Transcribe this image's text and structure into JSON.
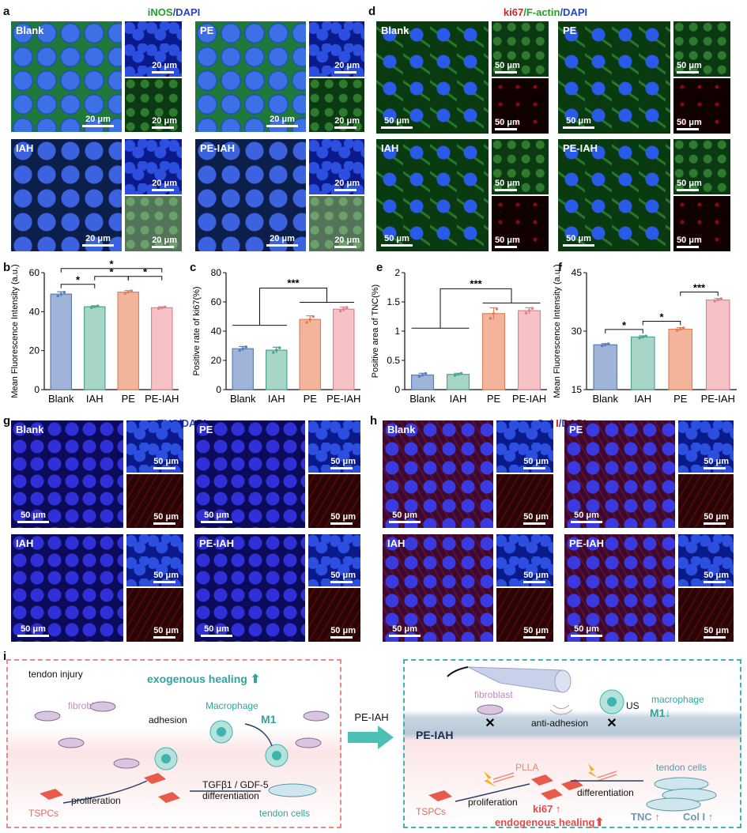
{
  "panel_a": {
    "label": "a",
    "title_part1": "iNOS",
    "title_part2": "/DAPI",
    "groups": [
      "Blank",
      "PE",
      "IAH",
      "PE-IAH"
    ],
    "scale_bar": "20 μm"
  },
  "panel_d": {
    "label": "d",
    "title_part1": "ki67",
    "title_part2": "/F-actin",
    "title_part3": "/DAPI",
    "groups": [
      "Blank",
      "PE",
      "IAH",
      "PE-IAH"
    ],
    "scale_bar": "50 μm"
  },
  "panel_g": {
    "label": "g",
    "title_part1": "TNC",
    "title_part2": "/DAPI",
    "groups": [
      "Blank",
      "PE",
      "IAH",
      "PE-IAH"
    ],
    "scale_bar": "50 μm"
  },
  "panel_h": {
    "label": "h",
    "title_part1": "Col I",
    "title_part2": "/DAPI",
    "groups": [
      "Blank",
      "PE",
      "IAH",
      "PE-IAH"
    ],
    "scale_bar": "50 μm"
  },
  "colors": {
    "blank": "#9fb4d8",
    "iah": "#a7d6c8",
    "pe": "#f2b59c",
    "peiah": "#f6c2c6",
    "blank_edge": "#5f7fb0",
    "iah_edge": "#4fa58c",
    "pe_edge": "#e0805a",
    "peiah_edge": "#e0828a",
    "teal": "#3fb3ad",
    "red": "#d83838"
  },
  "chart_data": [
    {
      "label": "b",
      "type": "bar",
      "categories": [
        "Blank",
        "IAH",
        "PE",
        "PE-IAH"
      ],
      "values": [
        49,
        42.5,
        50,
        42
      ],
      "errors": [
        1.2,
        0.5,
        0.8,
        0.5
      ],
      "ylabel": "Mean Fluorescence Intensity (a.u.)",
      "ylim": [
        0,
        60
      ],
      "yticks": [
        0,
        20,
        40,
        60
      ],
      "significance": [
        "*",
        "*",
        "*",
        "*"
      ]
    },
    {
      "label": "c",
      "type": "bar",
      "categories": [
        "Blank",
        "IAH",
        "PE",
        "PE-IAH"
      ],
      "values": [
        28,
        27,
        48,
        55
      ],
      "errors": [
        1.5,
        2,
        2.5,
        1.5
      ],
      "ylabel": "Positive rate of ki67(%)",
      "ylim": [
        0,
        80
      ],
      "yticks": [
        0,
        20,
        40,
        60,
        80
      ],
      "significance": [
        "***"
      ]
    },
    {
      "label": "e",
      "type": "bar",
      "categories": [
        "Blank",
        "IAH",
        "PE",
        "PE-IAH"
      ],
      "values": [
        0.25,
        0.26,
        1.3,
        1.35
      ],
      "errors": [
        0.03,
        0.02,
        0.1,
        0.05
      ],
      "ylabel": "Positive area of TNC(%)",
      "ylim": [
        0,
        2.0
      ],
      "yticks": [
        0.0,
        0.5,
        1.0,
        1.5,
        2.0
      ],
      "significance": [
        "***"
      ]
    },
    {
      "label": "f",
      "type": "bar",
      "categories": [
        "Blank",
        "IAH",
        "PE",
        "PE-IAH"
      ],
      "values": [
        26.5,
        28.5,
        30.5,
        38
      ],
      "errors": [
        0.3,
        0.3,
        0.4,
        0.4
      ],
      "ylabel": "Mean Fluorescence Intensity (a.u.)",
      "ylim": [
        15,
        45
      ],
      "yticks": [
        15,
        30,
        45
      ],
      "significance": [
        "*",
        "*",
        "***"
      ]
    }
  ],
  "panel_i": {
    "label": "i",
    "left": {
      "tendon_injury": "tendon injury",
      "exogenous": "exogenous healing",
      "fibroblast": "fibroblast",
      "macrophage": "Macrophage",
      "adhesion": "adhesion",
      "m1": "M1",
      "tgf": "TGFβ1 / GDF-5",
      "differentiation": "differentiation",
      "proliferation": "proliferation",
      "tspcs": "TSPCs",
      "tendon_cells": "tendon cells"
    },
    "arrow_label": "PE-IAH",
    "right": {
      "us": "US",
      "fibroblast": "fibroblast",
      "macrophage": "macrophage",
      "m1": "M1↓",
      "anti_adhesion": "anti-adhesion",
      "peiah": "PE-IAH",
      "plla": "PLLA",
      "tendon_cells": "tendon cells",
      "proliferation": "proliferation",
      "differentiation": "differentiation",
      "tspcs": "TSPCs",
      "ki67": "ki67 ↑",
      "endogenous": "endogenous healing",
      "tnc": "TNC ↑",
      "col": "Col I ↑"
    }
  }
}
